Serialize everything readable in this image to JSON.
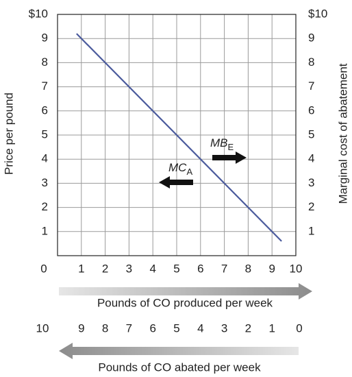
{
  "chart_data": {
    "type": "line",
    "ylabel": "Price per pound",
    "y2label": "Marginal cost of abatement",
    "xlabel": "Pounds of CO produced per week",
    "x2label": "Pounds of CO abated per week",
    "xlim": [
      0,
      10
    ],
    "xticks": [
      0,
      1,
      2,
      3,
      4,
      5,
      6,
      7,
      8,
      9,
      10
    ],
    "x2lim": [
      10,
      0
    ],
    "x2ticks": [
      10,
      9,
      8,
      7,
      6,
      5,
      4,
      3,
      2,
      1,
      0
    ],
    "ylim": [
      0,
      10
    ],
    "yticks": [
      1,
      2,
      3,
      4,
      5,
      6,
      7,
      8,
      9,
      {
        "value": 10,
        "label": "$10"
      }
    ],
    "y2lim": [
      0,
      10
    ],
    "y2ticks": [
      1,
      2,
      3,
      4,
      5,
      6,
      7,
      8,
      9,
      {
        "value": 10,
        "label": "$10"
      }
    ],
    "grid": true,
    "series": [
      {
        "color": "#4a5a9c",
        "x": [
          0.8,
          9.4
        ],
        "values": [
          9.2,
          0.6
        ]
      }
    ],
    "annotations": [
      {
        "text": "MB",
        "sub": "E"
      },
      {
        "text": "MC",
        "sub": "A"
      }
    ]
  }
}
